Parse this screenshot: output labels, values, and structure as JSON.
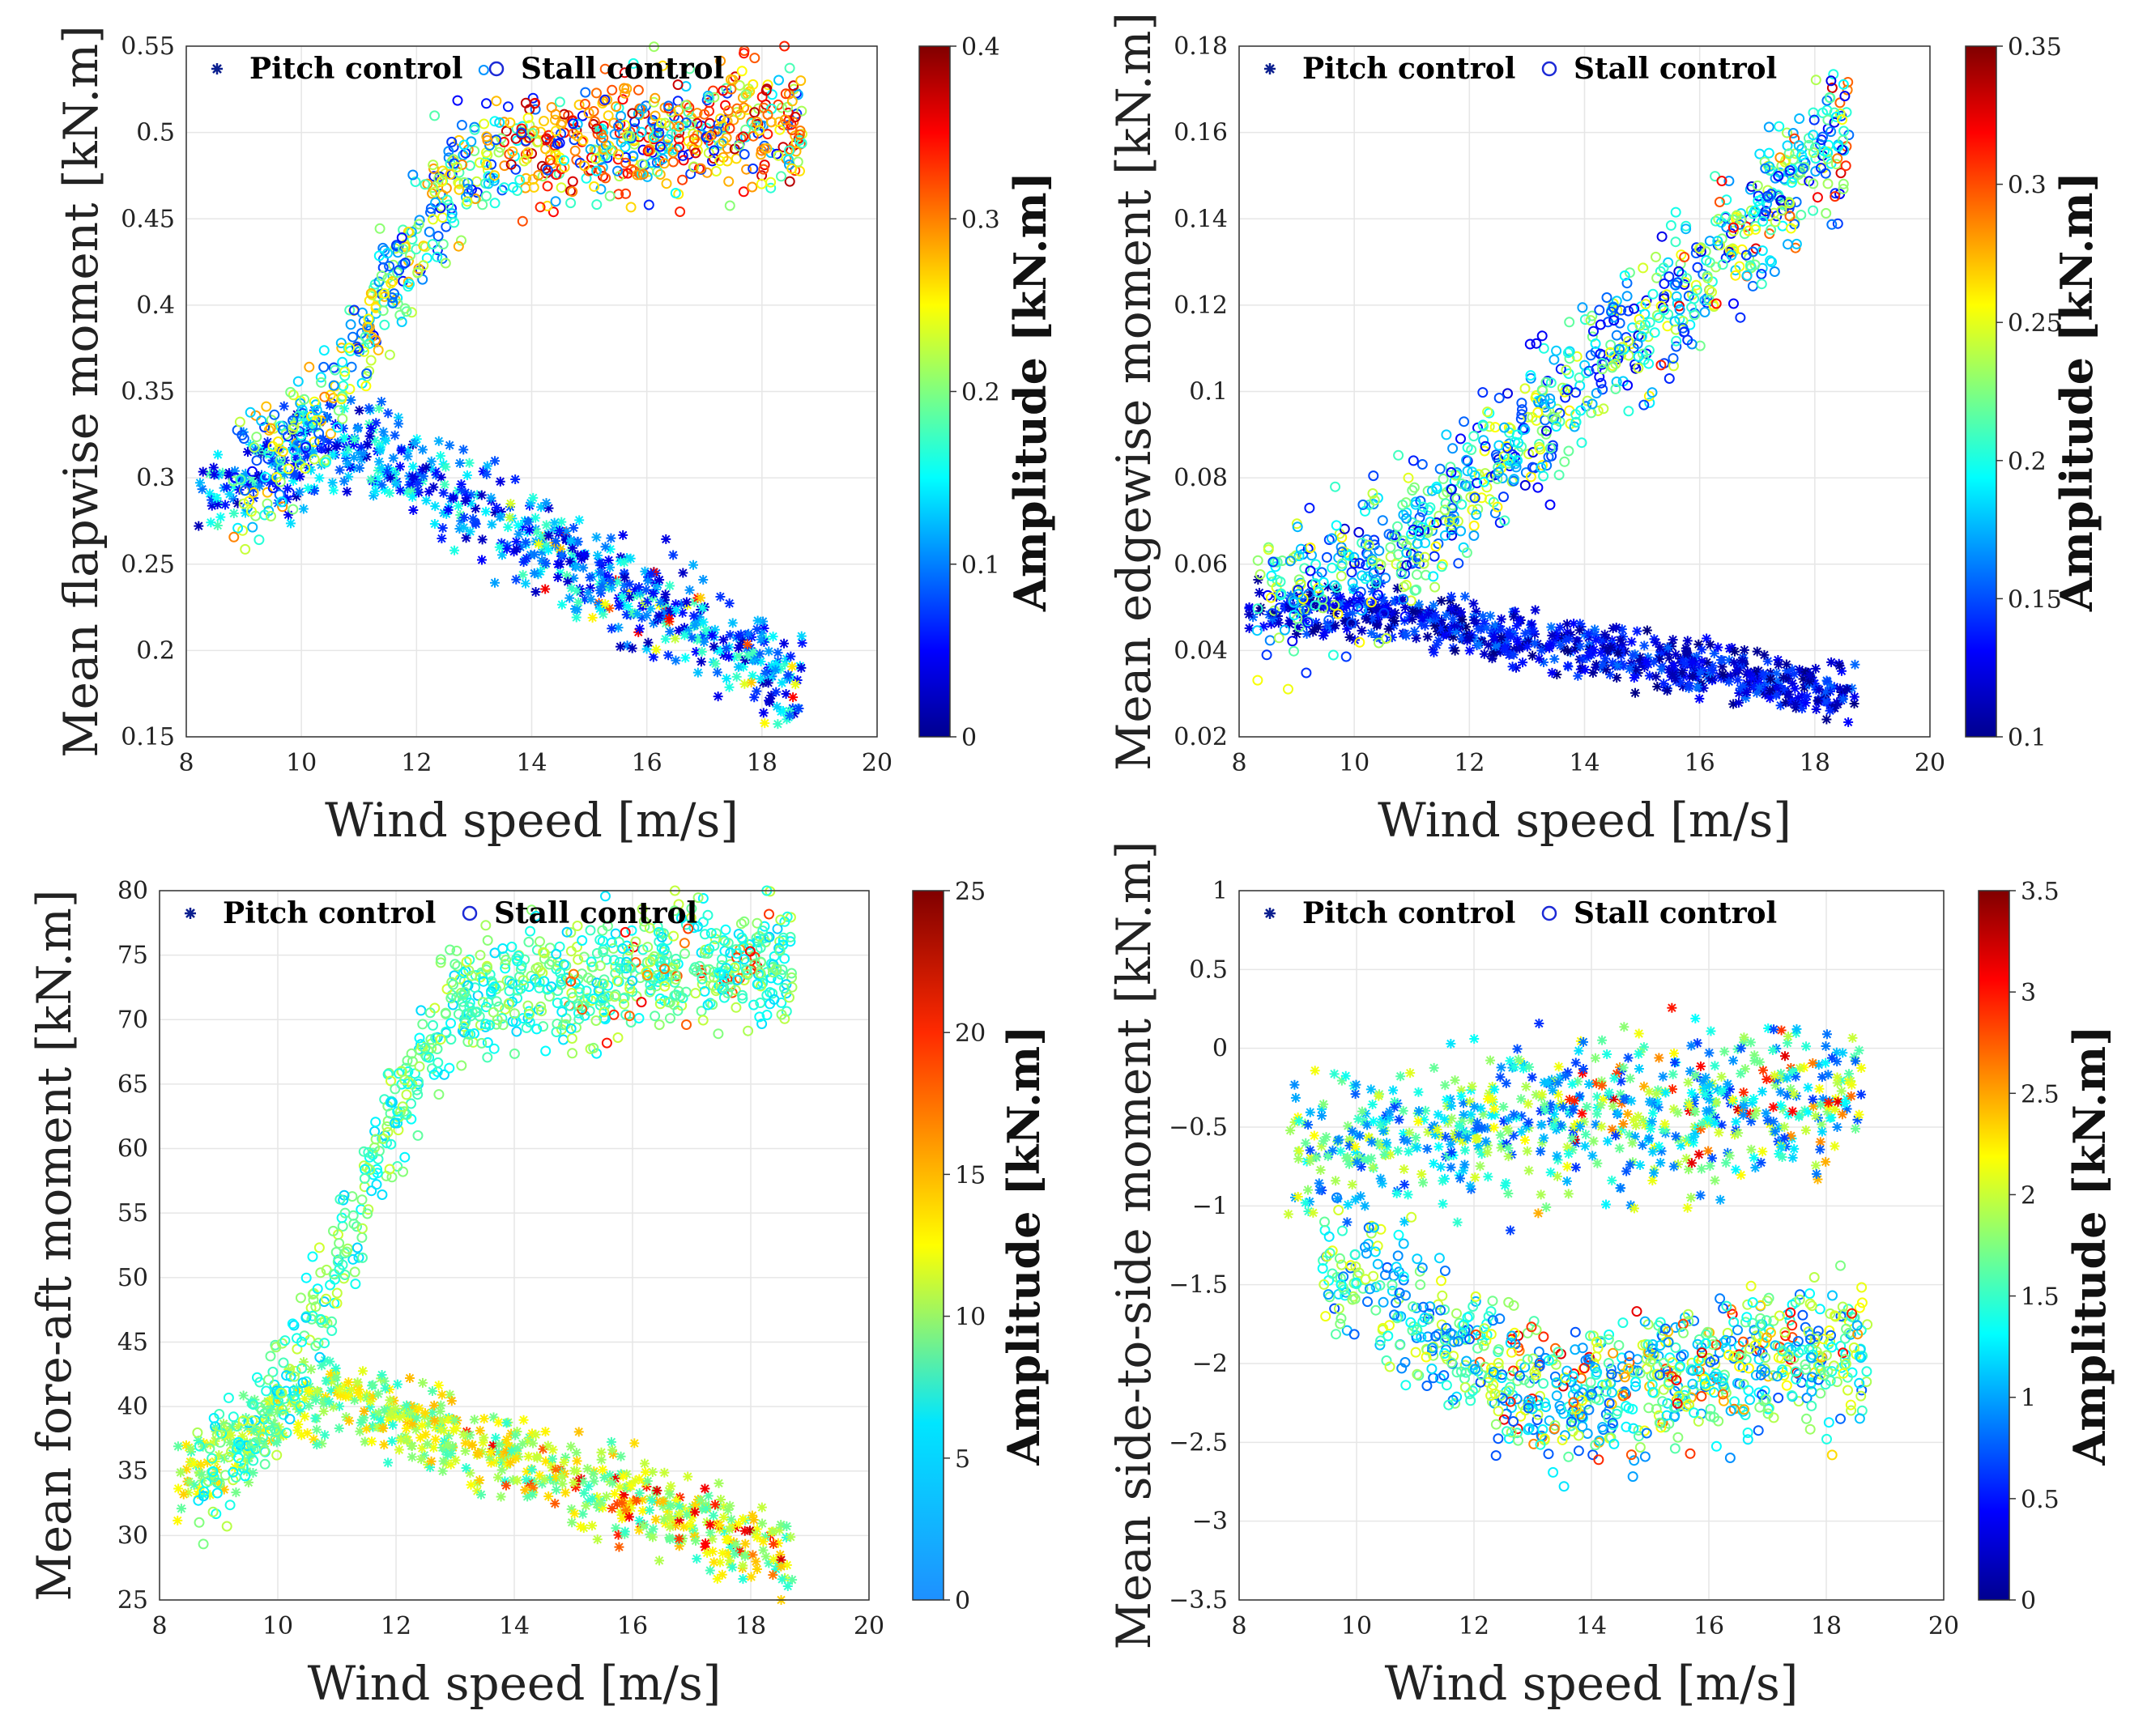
{
  "legend": {
    "pitch_label": "Pitch control",
    "stall_label": "Stall control"
  },
  "colors": {
    "legend_pitch": "#0b1f8f",
    "legend_stall": "#1d2bd6",
    "grid": "#e6e6e6",
    "axis": "#333333"
  },
  "chart_data": [
    {
      "type": "scatter",
      "panel": "top-left",
      "xlabel": "Wind speed [m/s]",
      "ylabel": "Mean flapwise moment [kN.m]",
      "xlim": [
        8,
        20
      ],
      "ylim": [
        0.15,
        0.55
      ],
      "xticks": [
        "8",
        "10",
        "12",
        "14",
        "16",
        "18",
        "20"
      ],
      "yticks": [
        "0.15",
        "0.2",
        "0.25",
        "0.3",
        "0.35",
        "0.4",
        "0.45",
        "0.5",
        "0.55"
      ],
      "colorbar": {
        "label": "Amplitude [kN.m]",
        "range": [
          0,
          0.4
        ],
        "ticks": [
          "0",
          "0.1",
          "0.2",
          "0.3",
          "0.4"
        ],
        "colormap": "jet"
      },
      "series": [
        {
          "name": "Pitch control",
          "marker": "asterisk",
          "n": 720,
          "seed": 11,
          "x_range": [
            8.2,
            18.7
          ],
          "y_start": [
            8.2,
            0.29
          ],
          "y_peak": [
            11.0,
            0.32
          ],
          "y_end": [
            18.5,
            0.18
          ],
          "y_spread": 0.028,
          "c_range": [
            0.02,
            0.18
          ],
          "c_hot_above": 13.0,
          "c_hot_frac": 0.05,
          "c_hot_range": [
            0.22,
            0.36
          ]
        },
        {
          "name": "Stall control",
          "marker": "circle",
          "n": 900,
          "seed": 23,
          "x_range": [
            8.8,
            18.7
          ],
          "y_start": [
            9.0,
            0.3
          ],
          "y_peak": [
            13.5,
            0.49
          ],
          "y_end": [
            18.7,
            0.505
          ],
          "y_spread": 0.035,
          "c_range": [
            0.05,
            0.3
          ],
          "c_hot_above": 13.5,
          "c_hot_frac": 0.45,
          "c_hot_range": [
            0.26,
            0.38
          ]
        }
      ]
    },
    {
      "type": "scatter",
      "panel": "top-right",
      "xlabel": "Wind speed [m/s]",
      "ylabel": "Mean edgewise moment [kN.m]",
      "xlim": [
        8,
        20
      ],
      "ylim": [
        0.02,
        0.18
      ],
      "xticks": [
        "8",
        "10",
        "12",
        "14",
        "16",
        "18",
        "20"
      ],
      "yticks": [
        "0.02",
        "0.04",
        "0.06",
        "0.08",
        "0.1",
        "0.12",
        "0.14",
        "0.16",
        "0.18"
      ],
      "colorbar": {
        "label": "Amplitude [kN.m]",
        "range": [
          0.1,
          0.35
        ],
        "ticks": [
          "0.1",
          "0.15",
          "0.2",
          "0.25",
          "0.3",
          "0.35"
        ],
        "colormap": "jet"
      },
      "series": [
        {
          "name": "Pitch control",
          "marker": "asterisk",
          "n": 720,
          "seed": 37,
          "x_range": [
            8.1,
            18.7
          ],
          "y_start": [
            8.1,
            0.05
          ],
          "y_peak": [
            10.5,
            0.048
          ],
          "y_end": [
            18.7,
            0.03
          ],
          "y_spread": 0.006,
          "c_range": [
            0.1,
            0.16
          ],
          "c_hot_above": 20,
          "c_hot_frac": 0,
          "c_hot_range": [
            0.2,
            0.3
          ]
        },
        {
          "name": "Stall control",
          "marker": "circle",
          "n": 900,
          "seed": 41,
          "x_range": [
            8.3,
            18.6
          ],
          "y_start": [
            8.3,
            0.05
          ],
          "y_peak": [
            11.0,
            0.065
          ],
          "y_end": [
            18.6,
            0.16
          ],
          "y_spread": 0.016,
          "c_range": [
            0.12,
            0.26
          ],
          "c_hot_above": 15.0,
          "c_hot_frac": 0.06,
          "c_hot_range": [
            0.28,
            0.33
          ]
        }
      ]
    },
    {
      "type": "scatter",
      "panel": "bottom-left",
      "xlabel": "Wind speed [m/s]",
      "ylabel": "Mean fore-aft moment [kN.m]",
      "xlim": [
        8,
        20
      ],
      "ylim": [
        25,
        80
      ],
      "xticks": [
        "8",
        "10",
        "12",
        "14",
        "16",
        "18",
        "20"
      ],
      "yticks": [
        "25",
        "30",
        "35",
        "40",
        "45",
        "50",
        "55",
        "60",
        "65",
        "70",
        "75",
        "80"
      ],
      "colorbar": {
        "label": "Amplitude [kN.m]",
        "range": [
          0,
          25
        ],
        "ticks": [
          "0",
          "5",
          "10",
          "15",
          "20",
          "25"
        ],
        "colormap": "jet-cut"
      },
      "series": [
        {
          "name": "Pitch control",
          "marker": "asterisk",
          "n": 720,
          "seed": 53,
          "x_range": [
            8.1,
            18.7
          ],
          "y_start": [
            8.1,
            34.5
          ],
          "y_peak": [
            11.0,
            41.0
          ],
          "y_end": [
            18.6,
            28.5
          ],
          "y_spread": 3.2,
          "c_range": [
            4,
            14
          ],
          "c_hot_above": 13.0,
          "c_hot_frac": 0.12,
          "c_hot_range": [
            16,
            23
          ]
        },
        {
          "name": "Stall control",
          "marker": "circle",
          "n": 900,
          "seed": 67,
          "x_range": [
            8.6,
            18.7
          ],
          "y_start": [
            9.0,
            36.0
          ],
          "y_peak": [
            13.5,
            72.0
          ],
          "y_end": [
            18.7,
            75.0
          ],
          "y_spread": 4.5,
          "c_range": [
            1,
            10
          ],
          "c_hot_above": 14.5,
          "c_hot_frac": 0.05,
          "c_hot_range": [
            15,
            21
          ]
        }
      ]
    },
    {
      "type": "scatter",
      "panel": "bottom-right",
      "xlabel": "Wind speed [m/s]",
      "ylabel": "Mean side-to-side moment [kN.m]",
      "xlim": [
        8,
        20
      ],
      "ylim": [
        -3.5,
        1
      ],
      "xticks": [
        "8",
        "10",
        "12",
        "14",
        "16",
        "18",
        "20"
      ],
      "yticks": [
        "−3.5",
        "−3",
        "−2.5",
        "−2",
        "−1.5",
        "−1",
        "−0.5",
        "0",
        "0.5",
        "1"
      ],
      "colorbar": {
        "label": "Amplitude [kN.m]",
        "range": [
          0,
          3.5
        ],
        "ticks": [
          "0",
          "0.5",
          "1",
          "1.5",
          "2",
          "2.5",
          "3",
          "3.5"
        ],
        "colormap": "jet"
      },
      "series": [
        {
          "name": "Pitch control",
          "marker": "asterisk",
          "n": 720,
          "seed": 71,
          "x_range": [
            8.8,
            18.6
          ],
          "y_start": [
            8.8,
            -0.6
          ],
          "y_peak": [
            13.0,
            -0.5
          ],
          "y_end": [
            18.6,
            -0.3
          ],
          "y_spread": 0.45,
          "c_range": [
            0.6,
            2.2
          ],
          "c_hot_above": 13.0,
          "c_hot_frac": 0.12,
          "c_hot_range": [
            2.4,
            3.3
          ]
        },
        {
          "name": "Stall control",
          "marker": "circle",
          "n": 900,
          "seed": 83,
          "x_range": [
            9.4,
            18.7
          ],
          "y_start": [
            9.4,
            -1.4
          ],
          "y_peak": [
            13.5,
            -2.2
          ],
          "y_end": [
            18.7,
            -1.9
          ],
          "y_spread": 0.45,
          "c_range": [
            0.7,
            2.2
          ],
          "c_hot_above": 12.0,
          "c_hot_frac": 0.12,
          "c_hot_range": [
            2.3,
            3.2
          ]
        }
      ]
    }
  ]
}
